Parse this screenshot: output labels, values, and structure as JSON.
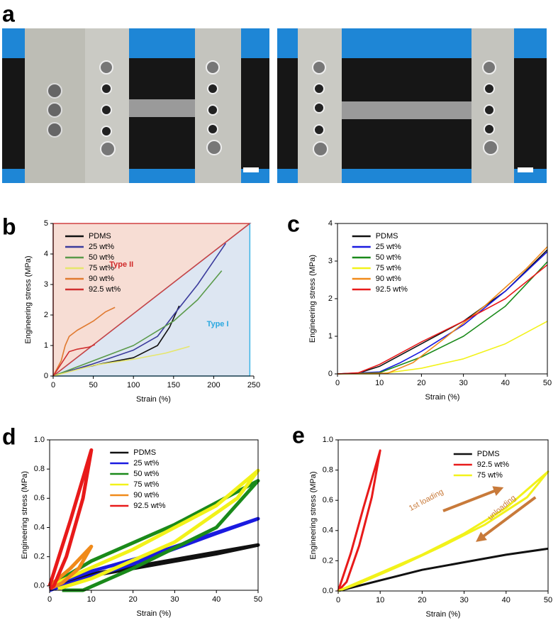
{
  "panel_labels": [
    "a",
    "b",
    "c",
    "d",
    "e"
  ],
  "chart_data": [
    {
      "type": "line",
      "xlabel": "Strain (%)",
      "ylabel": "Engineering stress (MPa)",
      "xlim": [
        0,
        250
      ],
      "xticks": [
        0,
        50,
        100,
        150,
        200,
        250
      ],
      "ylim": [
        0,
        5
      ],
      "yticks": [
        0,
        1,
        2,
        3,
        4,
        5
      ],
      "legend": "upper left",
      "annotations": [
        "Type II",
        "Type I"
      ],
      "series": [
        {
          "name": "PDMS",
          "color": "#111111",
          "x": [
            0,
            25,
            60,
            100,
            130,
            145,
            157
          ],
          "values": [
            0,
            0.2,
            0.4,
            0.6,
            1.0,
            1.6,
            2.3
          ]
        },
        {
          "name": "25 wt%",
          "color": "#3b3b9c",
          "x": [
            0,
            50,
            100,
            130,
            150,
            180,
            215
          ],
          "values": [
            0,
            0.4,
            0.85,
            1.3,
            2.0,
            3.0,
            4.35
          ]
        },
        {
          "name": "50 wt%",
          "color": "#5a9a4a",
          "x": [
            0,
            50,
            100,
            150,
            180,
            210
          ],
          "values": [
            0,
            0.5,
            1.0,
            1.8,
            2.5,
            3.45
          ]
        },
        {
          "name": "75 wt%",
          "color": "#e6e66c",
          "x": [
            0,
            50,
            100,
            140,
            170
          ],
          "values": [
            0,
            0.35,
            0.55,
            0.75,
            0.97
          ]
        },
        {
          "name": "90 wt%",
          "color": "#e07a30",
          "x": [
            0,
            10,
            15,
            20,
            30,
            50,
            65,
            77
          ],
          "values": [
            0,
            0.5,
            1.0,
            1.3,
            1.5,
            1.8,
            2.1,
            2.25
          ]
        },
        {
          "name": "92.5 wt%",
          "color": "#d03030",
          "x": [
            0,
            10,
            20,
            30,
            45,
            52
          ],
          "values": [
            0,
            0.4,
            0.8,
            0.88,
            0.95,
            1.03
          ]
        }
      ]
    },
    {
      "type": "line",
      "xlabel": "Strain (%)",
      "ylabel": "Engineering stress (MPa)",
      "xlim": [
        0,
        50
      ],
      "xticks": [
        0,
        10,
        20,
        30,
        40,
        50
      ],
      "ylim": [
        0,
        4
      ],
      "yticks": [
        0,
        1,
        2,
        3,
        4
      ],
      "legend": "upper left",
      "series": [
        {
          "name": "PDMS",
          "color": "#111111",
          "x": [
            0,
            5,
            10,
            20,
            30,
            40,
            50
          ],
          "values": [
            0,
            0.02,
            0.2,
            0.8,
            1.4,
            2.2,
            3.3
          ]
        },
        {
          "name": "25 wt%",
          "color": "#1a1ae0",
          "x": [
            0,
            10,
            15,
            20,
            30,
            40,
            50
          ],
          "values": [
            0,
            0.05,
            0.3,
            0.6,
            1.3,
            2.2,
            3.25
          ]
        },
        {
          "name": "50 wt%",
          "color": "#1a8a1a",
          "x": [
            0,
            10,
            20,
            30,
            40,
            50
          ],
          "values": [
            0,
            0.03,
            0.45,
            1.0,
            1.8,
            2.98
          ]
        },
        {
          "name": "75 wt%",
          "color": "#f2f21a",
          "x": [
            0,
            10,
            20,
            30,
            40,
            50
          ],
          "values": [
            0,
            0,
            0.15,
            0.4,
            0.8,
            1.4
          ]
        },
        {
          "name": "90 wt%",
          "color": "#f08a1a",
          "x": [
            0,
            12,
            18,
            25,
            35,
            45,
            50
          ],
          "values": [
            0,
            0.02,
            0.3,
            0.9,
            1.8,
            2.8,
            3.38
          ]
        },
        {
          "name": "92.5 wt%",
          "color": "#e81a1a",
          "x": [
            0,
            5,
            10,
            20,
            30,
            40,
            50
          ],
          "values": [
            0,
            0.03,
            0.25,
            0.85,
            1.4,
            2.0,
            2.9
          ]
        }
      ]
    },
    {
      "type": "line",
      "xlabel": "Strain (%)",
      "ylabel": "Engineering stress (MPa)",
      "xlim": [
        0,
        50
      ],
      "xticks": [
        0,
        10,
        20,
        30,
        40,
        50
      ],
      "ylim": [
        -0.03,
        1.0
      ],
      "yticks": [
        {
          "value": 0,
          "label": "0.0"
        },
        0.2,
        0.4,
        0.6,
        0.8,
        {
          "value": 1,
          "label": "1.0"
        }
      ],
      "legend": "upper center",
      "series": [
        {
          "name": "PDMS",
          "color": "#111111",
          "x": [
            0,
            10,
            20,
            30,
            40,
            50,
            40,
            30,
            20,
            10,
            0
          ],
          "values": [
            0,
            0.08,
            0.13,
            0.18,
            0.23,
            0.28,
            0.22,
            0.17,
            0.12,
            0.07,
            0
          ]
        },
        {
          "name": "25 wt%",
          "color": "#1a1ae0",
          "x": [
            0,
            10,
            25,
            50,
            40,
            20,
            5,
            0
          ],
          "values": [
            0,
            0.1,
            0.22,
            0.46,
            0.36,
            0.15,
            0.02,
            -0.03
          ]
        },
        {
          "name": "50 wt%",
          "color": "#1a8a1a",
          "x": [
            0,
            10,
            30,
            50,
            40,
            20,
            8,
            3
          ],
          "values": [
            0,
            0.17,
            0.42,
            0.72,
            0.4,
            0.12,
            -0.03,
            -0.03
          ]
        },
        {
          "name": "75 wt%",
          "color": "#f2f21a",
          "x": [
            0,
            20,
            40,
            50,
            45,
            30,
            10,
            2
          ],
          "values": [
            0,
            0.25,
            0.55,
            0.79,
            0.6,
            0.3,
            0.05,
            -0.02
          ]
        },
        {
          "name": "90 wt%",
          "color": "#f08a1a",
          "x": [
            0,
            5,
            10,
            7,
            3,
            0
          ],
          "values": [
            0,
            0.12,
            0.27,
            0.12,
            0.02,
            -0.02
          ]
        },
        {
          "name": "92.5 wt%",
          "color": "#e81a1a",
          "x": [
            0,
            5,
            10,
            8,
            4,
            1,
            0
          ],
          "values": [
            0,
            0.45,
            0.93,
            0.6,
            0.2,
            0,
            -0.02
          ]
        }
      ]
    },
    {
      "type": "line",
      "xlabel": "Strain (%)",
      "ylabel": "Engineering stress (MPa)",
      "xlim": [
        0,
        50
      ],
      "xticks": [
        0,
        10,
        20,
        30,
        40,
        50
      ],
      "ylim": [
        0,
        1.0
      ],
      "yticks": [
        {
          "value": 0,
          "label": "0.0"
        },
        0.2,
        0.4,
        0.6,
        0.8,
        {
          "value": 1,
          "label": "1.0"
        }
      ],
      "legend": "upper center",
      "annotations": [
        "1st loading",
        "unloading"
      ],
      "series": [
        {
          "name": "PDMS",
          "color": "#111111",
          "x": [
            0,
            10,
            20,
            30,
            40,
            50
          ],
          "values": [
            0,
            0.07,
            0.14,
            0.19,
            0.24,
            0.28
          ]
        },
        {
          "name": "92.5 wt%",
          "color": "#e81a1a",
          "x": [
            0,
            3,
            6,
            10,
            8,
            5,
            2,
            0
          ],
          "values": [
            0,
            0.25,
            0.55,
            0.93,
            0.62,
            0.3,
            0.06,
            0
          ]
        },
        {
          "name": "75 wt%",
          "color": "#f2f21a",
          "x": [
            0,
            10,
            20,
            30,
            40,
            50,
            45,
            35,
            25,
            15,
            5,
            0
          ],
          "values": [
            0,
            0.12,
            0.24,
            0.38,
            0.55,
            0.79,
            0.62,
            0.44,
            0.3,
            0.17,
            0.05,
            0
          ]
        }
      ]
    }
  ]
}
